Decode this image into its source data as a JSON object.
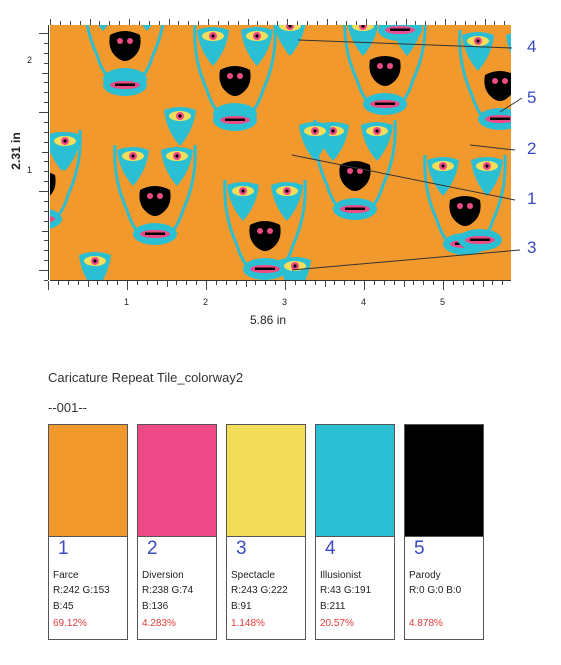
{
  "pattern": {
    "height_label": "2.31 in",
    "width_label": "5.86 in",
    "left_ruler_numbers": [
      "2",
      "1"
    ],
    "bottom_ruler_numbers": [
      "1",
      "2",
      "3",
      "4",
      "5"
    ],
    "callouts": [
      "4",
      "5",
      "2",
      "1",
      "3"
    ],
    "colors": {
      "background": "#f2992d",
      "face": "#2bbfd3",
      "pink": "#ee4a88",
      "yellow": "#f3de5b",
      "black": "#000000"
    }
  },
  "palette": {
    "title": "Caricature Repeat Tile_colorway2",
    "code": "--001--",
    "swatches": [
      {
        "num": "1",
        "name": "Farce",
        "rg": "R:242  G:153",
        "b": "B:45",
        "pct": "69.12%",
        "color": "#f2992d"
      },
      {
        "num": "2",
        "name": "Diversion",
        "rg": "R:238  G:74",
        "b": "B:136",
        "pct": "4.283%",
        "color": "#ee4a88"
      },
      {
        "num": "3",
        "name": "Spectacle",
        "rg": "R:243  G:222",
        "b": "B:91",
        "pct": "1.148%",
        "color": "#f3de5b"
      },
      {
        "num": "4",
        "name": "Illusionist",
        "rg": "R:43  G:191",
        "b": "B:211",
        "pct": "20.57%",
        "color": "#2bbfd3"
      },
      {
        "num": "5",
        "name": "Parody",
        "rg": "R:0  G:0  B:0",
        "b": "",
        "pct": "4.878%",
        "color": "#000000"
      }
    ]
  }
}
